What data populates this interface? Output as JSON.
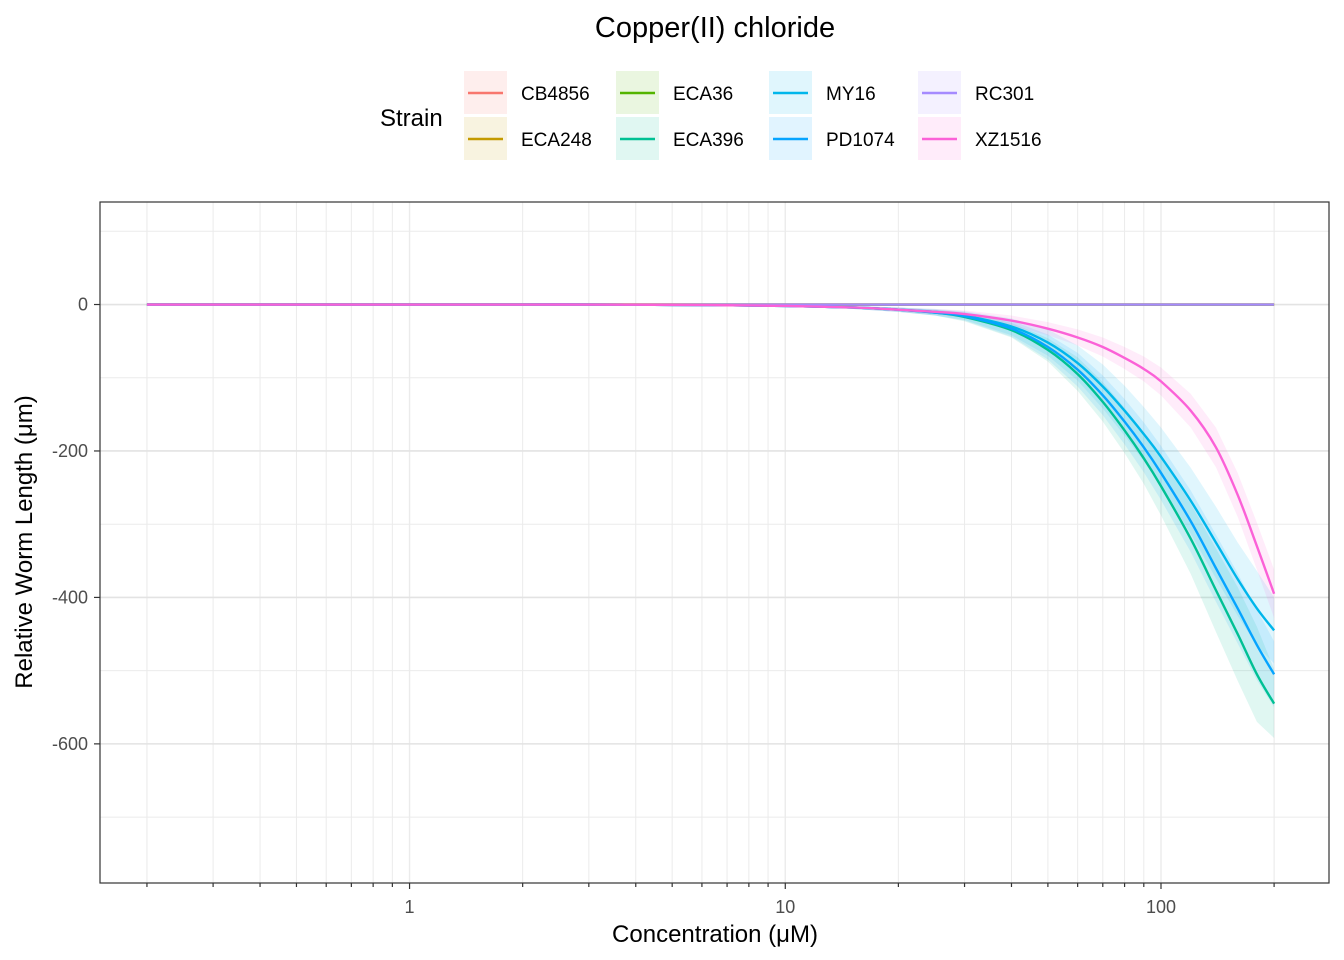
{
  "chart_data": {
    "type": "line",
    "title": "Copper(II) chloride",
    "xlabel": "Concentration (μM)",
    "ylabel": "Relative Worm Length (μm)",
    "xscale": "log10",
    "xlim": [
      0.15,
      280
    ],
    "ylim": [
      -790,
      140
    ],
    "x_ticks": [
      {
        "value": 1,
        "label": "1"
      },
      {
        "value": 10,
        "label": "10"
      },
      {
        "value": 100,
        "label": "100"
      }
    ],
    "y_ticks": [
      {
        "value": 0,
        "label": "0"
      },
      {
        "value": -200,
        "label": "-200"
      },
      {
        "value": -400,
        "label": "-400"
      },
      {
        "value": -600,
        "label": "-600"
      }
    ],
    "grid": true,
    "legend": {
      "title": "Strain",
      "position": "top"
    },
    "x": [
      0.2,
      0.3,
      0.5,
      1,
      2,
      3,
      5,
      7,
      10,
      15,
      20,
      25,
      30,
      40,
      50,
      60,
      70,
      80,
      90,
      100,
      120,
      140,
      160,
      180,
      200
    ],
    "series": [
      {
        "name": "CB4856",
        "color": "#F8766D",
        "values": [
          0,
          0,
          0,
          0,
          0,
          0,
          0,
          0,
          0,
          0,
          0,
          0,
          0,
          0,
          0,
          0,
          0,
          0,
          0,
          0,
          0,
          0,
          0,
          0,
          0
        ],
        "lower": [],
        "upper": []
      },
      {
        "name": "ECA248",
        "color": "#C49A00",
        "values": [
          0,
          0,
          0,
          0,
          0,
          0,
          0,
          0,
          0,
          0,
          0,
          0,
          0,
          0,
          0,
          0,
          0,
          0,
          0,
          0,
          0,
          0,
          0,
          0,
          0
        ],
        "lower": [],
        "upper": []
      },
      {
        "name": "ECA36",
        "color": "#53B400",
        "values": [
          0,
          0,
          0,
          0,
          0,
          0,
          0,
          0,
          0,
          0,
          0,
          0,
          0,
          0,
          0,
          0,
          0,
          0,
          0,
          0,
          0,
          0,
          0,
          0,
          0
        ],
        "lower": [],
        "upper": []
      },
      {
        "name": "ECA396",
        "color": "#00C094",
        "values": [
          0,
          0,
          0,
          0,
          0,
          0,
          -0.5,
          -1,
          -2,
          -4,
          -7,
          -11,
          -17,
          -35,
          -62,
          -95,
          -133,
          -172,
          -210,
          -248,
          -320,
          -390,
          -450,
          -505,
          -545
        ],
        "lower": [
          0,
          0,
          0,
          0,
          0,
          0,
          -1,
          -2,
          -3,
          -6,
          -10,
          -15,
          -23,
          -45,
          -78,
          -118,
          -160,
          -203,
          -245,
          -288,
          -368,
          -447,
          -514,
          -570,
          -592
        ],
        "upper": [
          0,
          0,
          0,
          0,
          0,
          0,
          0,
          0,
          -1,
          -2,
          -4,
          -7,
          -11,
          -25,
          -46,
          -72,
          -106,
          -141,
          -175,
          -208,
          -272,
          -333,
          -386,
          -440,
          -498
        ]
      },
      {
        "name": "MY16",
        "color": "#00B6EB",
        "values": [
          0,
          0,
          0,
          0,
          0,
          0,
          -0.5,
          -1,
          -2,
          -4,
          -7,
          -10,
          -15,
          -30,
          -52,
          -80,
          -112,
          -145,
          -177,
          -208,
          -268,
          -325,
          -375,
          -415,
          -445
        ],
        "lower": [
          0,
          0,
          0,
          0,
          0,
          0,
          -1,
          -2,
          -3,
          -6,
          -10,
          -15,
          -21,
          -42,
          -70,
          -104,
          -142,
          -179,
          -214,
          -248,
          -313,
          -374,
          -425,
          -466,
          -490
        ],
        "upper": [
          0,
          0,
          0,
          0,
          0,
          0,
          0,
          0,
          -1,
          -2,
          -4,
          -6,
          -9,
          -19,
          -34,
          -56,
          -82,
          -111,
          -140,
          -168,
          -223,
          -276,
          -325,
          -364,
          -400
        ]
      },
      {
        "name": "PD1074",
        "color": "#06A4FF",
        "values": [
          0,
          0,
          0,
          0,
          0,
          0,
          -0.5,
          -1,
          -2,
          -4,
          -7,
          -11,
          -16,
          -33,
          -58,
          -89,
          -124,
          -160,
          -195,
          -230,
          -296,
          -360,
          -415,
          -465,
          -505
        ],
        "lower": [
          0,
          0,
          0,
          0,
          0,
          0,
          -1,
          -2,
          -3,
          -6,
          -10,
          -15,
          -22,
          -44,
          -75,
          -112,
          -151,
          -191,
          -229,
          -267,
          -338,
          -406,
          -463,
          -513,
          -550
        ],
        "upper": [
          0,
          0,
          0,
          0,
          0,
          0,
          0,
          0,
          -1,
          -2,
          -4,
          -7,
          -10,
          -22,
          -41,
          -66,
          -97,
          -129,
          -161,
          -193,
          -254,
          -314,
          -367,
          -417,
          -460
        ]
      },
      {
        "name": "RC301",
        "color": "#A58AFF",
        "values": [
          0,
          0,
          0,
          0,
          0,
          0,
          0,
          0,
          0,
          0,
          0,
          0,
          0,
          0,
          0,
          0,
          0,
          0,
          0,
          0,
          0,
          0,
          0,
          0,
          0
        ],
        "lower": [],
        "upper": []
      },
      {
        "name": "XZ1516",
        "color": "#FB61D7",
        "values": [
          0,
          0,
          0,
          0,
          0,
          0,
          -0.5,
          -1,
          -2,
          -4,
          -7,
          -10,
          -13,
          -22,
          -33,
          -45,
          -58,
          -73,
          -88,
          -105,
          -145,
          -195,
          -260,
          -330,
          -395
        ],
        "lower": [
          0,
          0,
          0,
          0,
          0,
          0,
          -1,
          -2,
          -3,
          -6,
          -10,
          -14,
          -18,
          -29,
          -42,
          -56,
          -71,
          -88,
          -105,
          -124,
          -168,
          -222,
          -290,
          -362,
          -428
        ],
        "upper": [
          0,
          0,
          0,
          0,
          0,
          0,
          0,
          0,
          -1,
          -2,
          -4,
          -6,
          -8,
          -15,
          -24,
          -34,
          -45,
          -58,
          -71,
          -86,
          -122,
          -168,
          -230,
          -298,
          -362
        ]
      }
    ]
  }
}
